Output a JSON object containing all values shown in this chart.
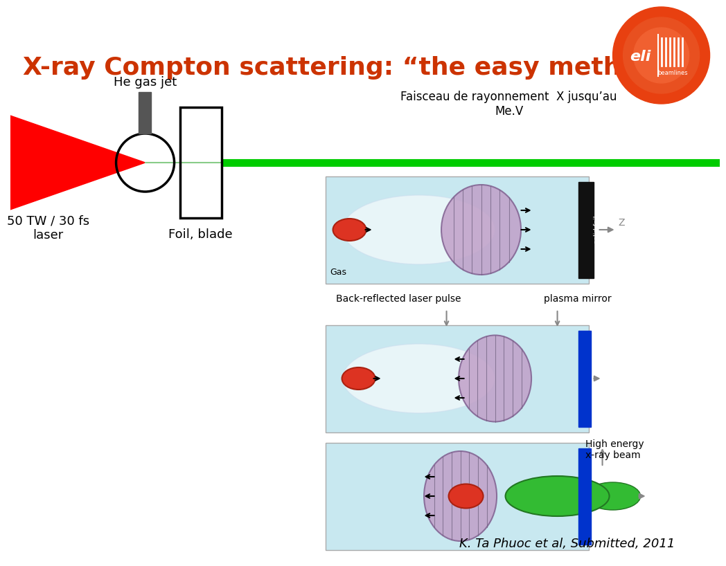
{
  "title": "X-ray Compton scattering: “the easy method”",
  "title_color": "#cc3300",
  "title_fontsize": 26,
  "bg_color": "#ffffff",
  "label_gas_jet": "He gas jet",
  "label_laser": "50 TW / 30 fs\nlaser",
  "label_foil": "Foil, blade",
  "label_faisceau": "Faisceau de rayonnement  X jusqu’au\nMe.V",
  "label_citation": "K. Ta Phuoc et al, Submitted, 2011",
  "laser_color": "#ff0000",
  "beam_color": "#00cc00",
  "circle_color": "#000000",
  "rect_color": "#000000",
  "panel_bg": "#c8e8f0",
  "foil_black": "#111111",
  "foil_blue": "#0033cc",
  "ellipse_purple_face": "#c0a0c8",
  "ellipse_purple_edge": "#806090",
  "ellipse_red": "#dd3322",
  "ellipse_green_face": "#33bb33",
  "ellipse_green_edge": "#227722",
  "gas_white": "#e8f4f8",
  "arrow_gray": "#888888"
}
